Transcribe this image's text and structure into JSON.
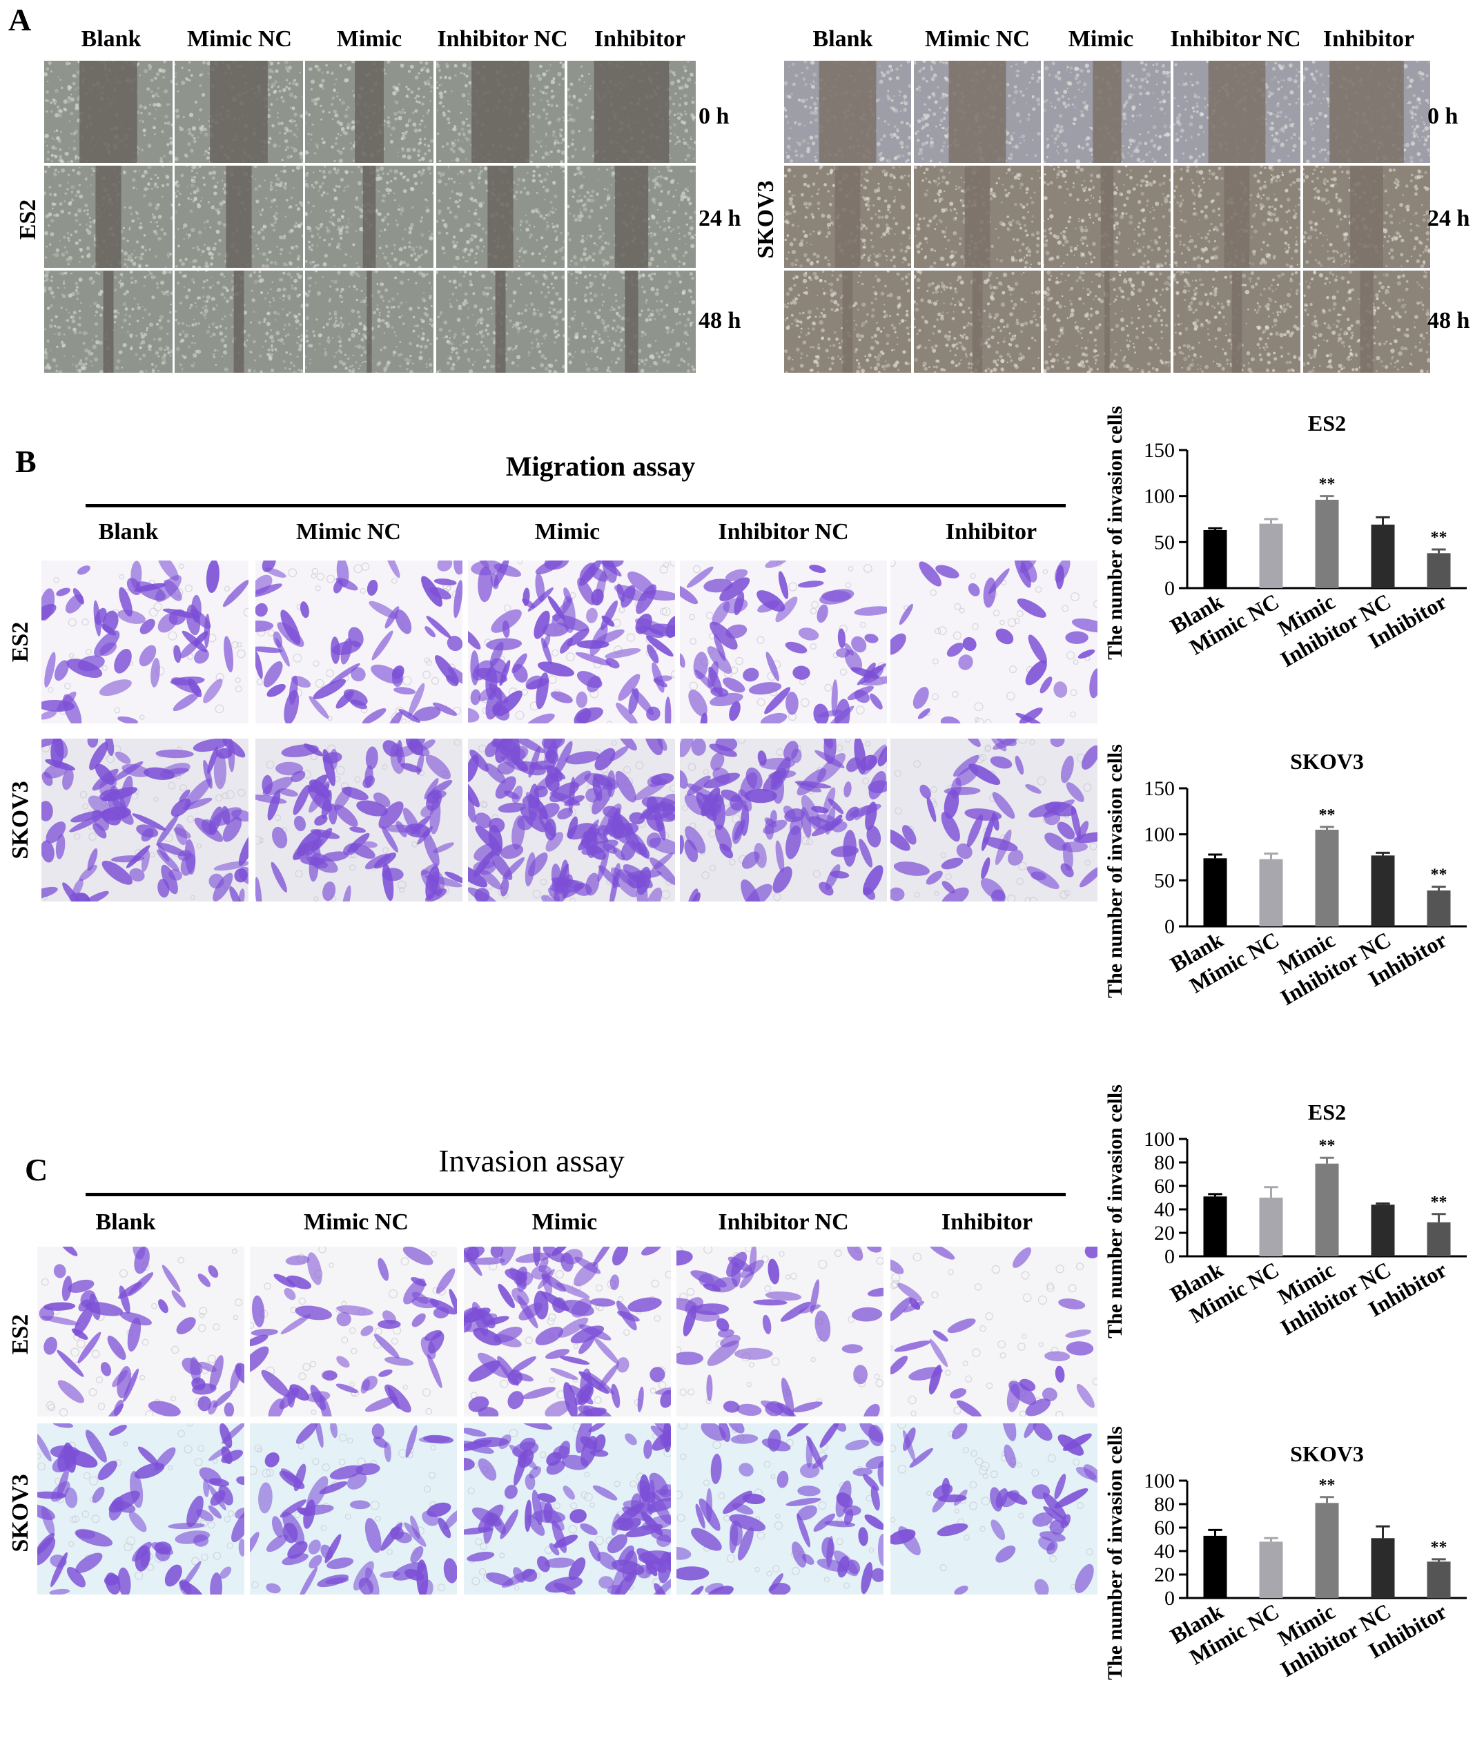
{
  "panel_a": {
    "letter": "A",
    "es2": {
      "cell_line": "ES2",
      "columns": [
        "Blank",
        "Mimic NC",
        "Mimic",
        "Inhibitor NC",
        "Inhibitor"
      ],
      "times": [
        "0 h",
        "24 h",
        "48 h"
      ]
    },
    "skov3": {
      "cell_line": "SKOV3",
      "columns": [
        "Blank",
        "Mimic NC",
        "Mimic",
        "Inhibitor NC",
        "Inhibitor"
      ],
      "times": [
        "0 h",
        "24 h",
        "48 h"
      ]
    }
  },
  "panel_b": {
    "letter": "B",
    "title": "Migration assay",
    "columns": [
      "Blank",
      "Mimic NC",
      "Mimic",
      "Inhibitor NC",
      "Inhibitor"
    ],
    "rows": [
      "ES2",
      "SKOV3"
    ]
  },
  "panel_c": {
    "letter": "C",
    "title": "Invasion assay",
    "columns": [
      "Blank",
      "Mimic NC",
      "Mimic",
      "Inhibitor NC",
      "Inhibitor"
    ],
    "rows": [
      "ES2",
      "SKOV3"
    ]
  },
  "chart_data": [
    {
      "type": "bar",
      "title": "ES2",
      "ylabel": "The number of invasion cells",
      "xlabel": "",
      "categories": [
        "Blank",
        "Mimic NC",
        "Mimic",
        "Inhibitor NC",
        "Inhibitor"
      ],
      "values": [
        63,
        70,
        96,
        69,
        38
      ],
      "errors": [
        2,
        5,
        4,
        8,
        4
      ],
      "significance": [
        "",
        "",
        "**",
        "",
        "**"
      ],
      "ylim": [
        0,
        150
      ],
      "yticks": [
        "0",
        "50",
        "100",
        "150"
      ],
      "bar_colors": [
        "#000000",
        "#a7a7ad",
        "#7d7d7d",
        "#2b2b2b",
        "#555555"
      ]
    },
    {
      "type": "bar",
      "title": "SKOV3",
      "ylabel": "The number of invasion cells",
      "xlabel": "",
      "categories": [
        "Blank",
        "Mimic NC",
        "Mimic",
        "Inhibitor NC",
        "Inhibitor"
      ],
      "values": [
        74,
        73,
        105,
        77,
        39
      ],
      "errors": [
        4,
        6,
        3,
        3,
        4
      ],
      "significance": [
        "",
        "",
        "**",
        "",
        "**"
      ],
      "ylim": [
        0,
        150
      ],
      "yticks": [
        "0",
        "50",
        "100",
        "150"
      ],
      "bar_colors": [
        "#000000",
        "#a7a7ad",
        "#7d7d7d",
        "#2b2b2b",
        "#555555"
      ]
    },
    {
      "type": "bar",
      "title": "ES2",
      "ylabel": "The number of invasion cells",
      "xlabel": "",
      "categories": [
        "Blank",
        "Mimic NC",
        "Mimic",
        "Inhibitor NC",
        "Inhibitor"
      ],
      "values": [
        51,
        50,
        79,
        44,
        29
      ],
      "errors": [
        2,
        9,
        5,
        1,
        7
      ],
      "significance": [
        "",
        "",
        "**",
        "",
        "**"
      ],
      "ylim": [
        0,
        100
      ],
      "yticks": [
        "0",
        "20",
        "40",
        "60",
        "80",
        "100"
      ],
      "bar_colors": [
        "#000000",
        "#a7a7ad",
        "#7d7d7d",
        "#2b2b2b",
        "#555555"
      ]
    },
    {
      "type": "bar",
      "title": "SKOV3",
      "ylabel": "The number of invasion cells",
      "xlabel": "",
      "categories": [
        "Blank",
        "Mimic NC",
        "Mimic",
        "Inhibitor NC",
        "Inhibitor"
      ],
      "values": [
        53,
        48,
        81,
        51,
        31
      ],
      "errors": [
        5,
        3,
        5,
        10,
        2
      ],
      "significance": [
        "",
        "",
        "**",
        "",
        "**"
      ],
      "ylim": [
        0,
        100
      ],
      "yticks": [
        "0",
        "20",
        "40",
        "60",
        "80",
        "100"
      ],
      "bar_colors": [
        "#000000",
        "#a7a7ad",
        "#7d7d7d",
        "#2b2b2b",
        "#555555"
      ]
    }
  ]
}
